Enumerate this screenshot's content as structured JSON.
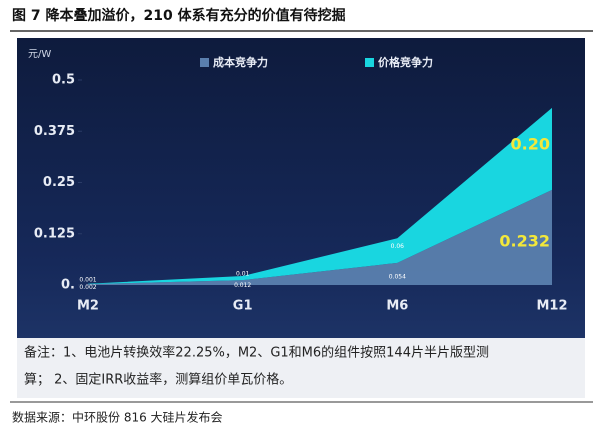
{
  "title": "图 7 降本叠加溢价，210 体系有充分的价值有待挖掘",
  "chart_data": {
    "type": "stacked-area",
    "y_label": "元/W",
    "categories": [
      "M2",
      "G1",
      "M6",
      "M12"
    ],
    "series": [
      {
        "name": "成本竞争力",
        "color": "#5a7fae",
        "values": [
          0.002,
          0.012,
          0.054,
          0.232
        ]
      },
      {
        "name": "价格竞争力",
        "color": "#19d6e0",
        "values": [
          0.001,
          0.01,
          0.06,
          0.2
        ],
        "value_labels": [
          "0.001",
          "0.01",
          "0.06",
          "0.20"
        ]
      }
    ],
    "ylim": [
      0,
      0.5
    ],
    "yticks": [
      {
        "value": 0,
        "label": "0."
      },
      0.125,
      0.25,
      0.375,
      0.5
    ]
  },
  "note": [
    "备注：1、电池片转换效率22.25%，M2、G1和M6的组件按照144片半片版型测",
    "算；    2、固定IRR收益率，测算组价单瓦价格。"
  ],
  "source": "数据来源：中环股份 816 大硅片发布会"
}
